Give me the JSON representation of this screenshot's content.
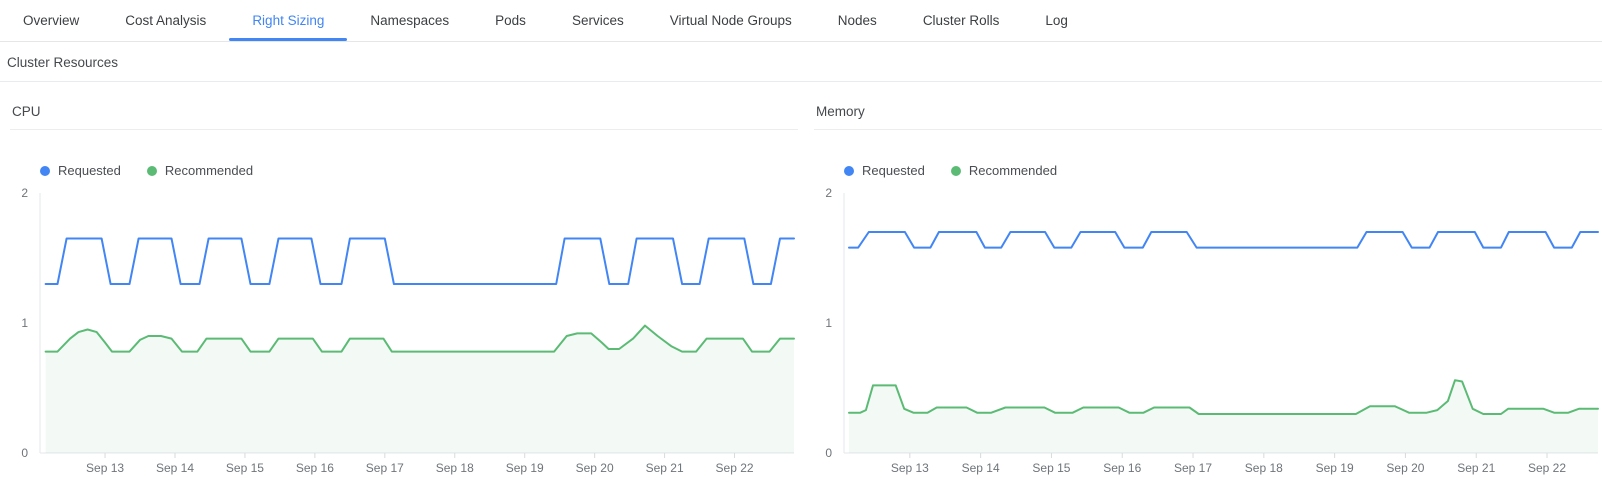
{
  "colors": {
    "accent": "#4285f4",
    "requested": "#4285f4",
    "recommended": "#5bbb75",
    "recommended_fill": "rgba(91,187,117,0.07)",
    "axis": "#e4e7ea",
    "tick": "#d7dadd"
  },
  "tabs": {
    "items": [
      {
        "label": "Overview",
        "active": false
      },
      {
        "label": "Cost Analysis",
        "active": false
      },
      {
        "label": "Right Sizing",
        "active": true
      },
      {
        "label": "Namespaces",
        "active": false
      },
      {
        "label": "Pods",
        "active": false
      },
      {
        "label": "Services",
        "active": false
      },
      {
        "label": "Virtual Node Groups",
        "active": false
      },
      {
        "label": "Nodes",
        "active": false
      },
      {
        "label": "Cluster Rolls",
        "active": false
      },
      {
        "label": "Log",
        "active": false
      }
    ]
  },
  "section": {
    "title": "Cluster Resources"
  },
  "chart_data": [
    {
      "type": "line",
      "title": "CPU",
      "grid": false,
      "legend_position": "top-left",
      "ylim": [
        0,
        2
      ],
      "yticks": [
        {
          "value": 0,
          "label": "0"
        },
        {
          "value": 1,
          "label": "1"
        },
        {
          "value": 2,
          "label": "2"
        }
      ],
      "xlim": [
        12.07,
        22.85
      ],
      "xticks": [
        {
          "value": 13,
          "label": "Sep 13"
        },
        {
          "value": 14,
          "label": "Sep 14"
        },
        {
          "value": 15,
          "label": "Sep 15"
        },
        {
          "value": 16,
          "label": "Sep 16"
        },
        {
          "value": 17,
          "label": "Sep 17"
        },
        {
          "value": 18,
          "label": "Sep 18"
        },
        {
          "value": 19,
          "label": "Sep 19"
        },
        {
          "value": 20,
          "label": "Sep 20"
        },
        {
          "value": 21,
          "label": "Sep 21"
        },
        {
          "value": 22,
          "label": "Sep 22"
        }
      ],
      "series": [
        {
          "name": "Requested",
          "color": "#4285f4",
          "fill": false,
          "points": [
            [
              12.15,
              1.3
            ],
            [
              12.32,
              1.3
            ],
            [
              12.45,
              1.65
            ],
            [
              12.95,
              1.65
            ],
            [
              13.08,
              1.3
            ],
            [
              13.35,
              1.3
            ],
            [
              13.48,
              1.65
            ],
            [
              13.95,
              1.65
            ],
            [
              14.08,
              1.3
            ],
            [
              14.35,
              1.3
            ],
            [
              14.48,
              1.65
            ],
            [
              14.95,
              1.65
            ],
            [
              15.08,
              1.3
            ],
            [
              15.35,
              1.3
            ],
            [
              15.48,
              1.65
            ],
            [
              15.95,
              1.65
            ],
            [
              16.08,
              1.3
            ],
            [
              16.38,
              1.3
            ],
            [
              16.5,
              1.65
            ],
            [
              17.0,
              1.65
            ],
            [
              17.13,
              1.3
            ],
            [
              19.45,
              1.3
            ],
            [
              19.57,
              1.65
            ],
            [
              20.08,
              1.65
            ],
            [
              20.21,
              1.3
            ],
            [
              20.48,
              1.3
            ],
            [
              20.6,
              1.65
            ],
            [
              21.12,
              1.65
            ],
            [
              21.25,
              1.3
            ],
            [
              21.5,
              1.3
            ],
            [
              21.63,
              1.65
            ],
            [
              22.14,
              1.65
            ],
            [
              22.27,
              1.3
            ],
            [
              22.52,
              1.3
            ],
            [
              22.65,
              1.65
            ],
            [
              22.85,
              1.65
            ]
          ]
        },
        {
          "name": "Recommended",
          "color": "#5bbb75",
          "fill": true,
          "fill_color": "rgba(91,187,117,0.07)",
          "points": [
            [
              12.15,
              0.78
            ],
            [
              12.32,
              0.78
            ],
            [
              12.5,
              0.88
            ],
            [
              12.62,
              0.93
            ],
            [
              12.75,
              0.95
            ],
            [
              12.88,
              0.93
            ],
            [
              13.0,
              0.85
            ],
            [
              13.1,
              0.78
            ],
            [
              13.35,
              0.78
            ],
            [
              13.5,
              0.87
            ],
            [
              13.62,
              0.9
            ],
            [
              13.8,
              0.9
            ],
            [
              13.95,
              0.88
            ],
            [
              14.1,
              0.78
            ],
            [
              14.32,
              0.78
            ],
            [
              14.45,
              0.88
            ],
            [
              14.95,
              0.88
            ],
            [
              15.08,
              0.78
            ],
            [
              15.35,
              0.78
            ],
            [
              15.48,
              0.88
            ],
            [
              15.97,
              0.88
            ],
            [
              16.1,
              0.78
            ],
            [
              16.38,
              0.78
            ],
            [
              16.5,
              0.88
            ],
            [
              16.98,
              0.88
            ],
            [
              17.1,
              0.78
            ],
            [
              19.42,
              0.78
            ],
            [
              19.6,
              0.9
            ],
            [
              19.75,
              0.92
            ],
            [
              19.95,
              0.92
            ],
            [
              20.1,
              0.85
            ],
            [
              20.2,
              0.8
            ],
            [
              20.35,
              0.8
            ],
            [
              20.55,
              0.88
            ],
            [
              20.72,
              0.98
            ],
            [
              20.9,
              0.9
            ],
            [
              21.1,
              0.82
            ],
            [
              21.25,
              0.78
            ],
            [
              21.45,
              0.78
            ],
            [
              21.6,
              0.88
            ],
            [
              22.12,
              0.88
            ],
            [
              22.25,
              0.78
            ],
            [
              22.5,
              0.78
            ],
            [
              22.65,
              0.88
            ],
            [
              22.85,
              0.88
            ]
          ]
        }
      ]
    },
    {
      "type": "line",
      "title": "Memory",
      "grid": false,
      "legend_position": "top-left",
      "ylim": [
        0,
        2
      ],
      "yticks": [
        {
          "value": 0,
          "label": "0"
        },
        {
          "value": 1,
          "label": "1"
        },
        {
          "value": 2,
          "label": "2"
        }
      ],
      "xlim": [
        12.07,
        22.72
      ],
      "xticks": [
        {
          "value": 13,
          "label": "Sep 13"
        },
        {
          "value": 14,
          "label": "Sep 14"
        },
        {
          "value": 15,
          "label": "Sep 15"
        },
        {
          "value": 16,
          "label": "Sep 16"
        },
        {
          "value": 17,
          "label": "Sep 17"
        },
        {
          "value": 18,
          "label": "Sep 18"
        },
        {
          "value": 19,
          "label": "Sep 19"
        },
        {
          "value": 20,
          "label": "Sep 20"
        },
        {
          "value": 21,
          "label": "Sep 21"
        },
        {
          "value": 22,
          "label": "Sep 22"
        }
      ],
      "series": [
        {
          "name": "Requested",
          "color": "#4285f4",
          "fill": false,
          "points": [
            [
              12.14,
              1.58
            ],
            [
              12.27,
              1.58
            ],
            [
              12.42,
              1.7
            ],
            [
              12.93,
              1.7
            ],
            [
              13.06,
              1.58
            ],
            [
              13.29,
              1.58
            ],
            [
              13.41,
              1.7
            ],
            [
              13.94,
              1.7
            ],
            [
              14.06,
              1.58
            ],
            [
              14.29,
              1.58
            ],
            [
              14.42,
              1.7
            ],
            [
              14.91,
              1.7
            ],
            [
              15.04,
              1.58
            ],
            [
              15.28,
              1.58
            ],
            [
              15.41,
              1.7
            ],
            [
              15.9,
              1.7
            ],
            [
              16.03,
              1.58
            ],
            [
              16.29,
              1.58
            ],
            [
              16.41,
              1.7
            ],
            [
              16.91,
              1.7
            ],
            [
              17.05,
              1.58
            ],
            [
              19.32,
              1.58
            ],
            [
              19.45,
              1.7
            ],
            [
              19.96,
              1.7
            ],
            [
              20.09,
              1.58
            ],
            [
              20.34,
              1.58
            ],
            [
              20.46,
              1.7
            ],
            [
              20.98,
              1.7
            ],
            [
              21.1,
              1.58
            ],
            [
              21.35,
              1.58
            ],
            [
              21.46,
              1.7
            ],
            [
              21.98,
              1.7
            ],
            [
              22.1,
              1.58
            ],
            [
              22.35,
              1.58
            ],
            [
              22.47,
              1.7
            ],
            [
              22.72,
              1.7
            ]
          ]
        },
        {
          "name": "Recommended",
          "color": "#5bbb75",
          "fill": true,
          "fill_color": "rgba(91,187,117,0.07)",
          "points": [
            [
              12.14,
              0.31
            ],
            [
              12.3,
              0.31
            ],
            [
              12.38,
              0.33
            ],
            [
              12.48,
              0.52
            ],
            [
              12.8,
              0.52
            ],
            [
              12.92,
              0.34
            ],
            [
              13.05,
              0.31
            ],
            [
              13.25,
              0.31
            ],
            [
              13.38,
              0.35
            ],
            [
              13.8,
              0.35
            ],
            [
              13.95,
              0.31
            ],
            [
              14.15,
              0.31
            ],
            [
              14.35,
              0.35
            ],
            [
              14.9,
              0.35
            ],
            [
              15.05,
              0.31
            ],
            [
              15.3,
              0.31
            ],
            [
              15.45,
              0.35
            ],
            [
              15.95,
              0.35
            ],
            [
              16.1,
              0.31
            ],
            [
              16.3,
              0.31
            ],
            [
              16.45,
              0.35
            ],
            [
              16.95,
              0.35
            ],
            [
              17.08,
              0.3
            ],
            [
              19.3,
              0.3
            ],
            [
              19.5,
              0.36
            ],
            [
              19.85,
              0.36
            ],
            [
              20.05,
              0.31
            ],
            [
              20.3,
              0.31
            ],
            [
              20.45,
              0.33
            ],
            [
              20.6,
              0.4
            ],
            [
              20.7,
              0.56
            ],
            [
              20.8,
              0.55
            ],
            [
              20.95,
              0.34
            ],
            [
              21.1,
              0.3
            ],
            [
              21.35,
              0.3
            ],
            [
              21.45,
              0.34
            ],
            [
              21.95,
              0.34
            ],
            [
              22.1,
              0.31
            ],
            [
              22.3,
              0.31
            ],
            [
              22.45,
              0.34
            ],
            [
              22.72,
              0.34
            ]
          ]
        }
      ]
    }
  ]
}
